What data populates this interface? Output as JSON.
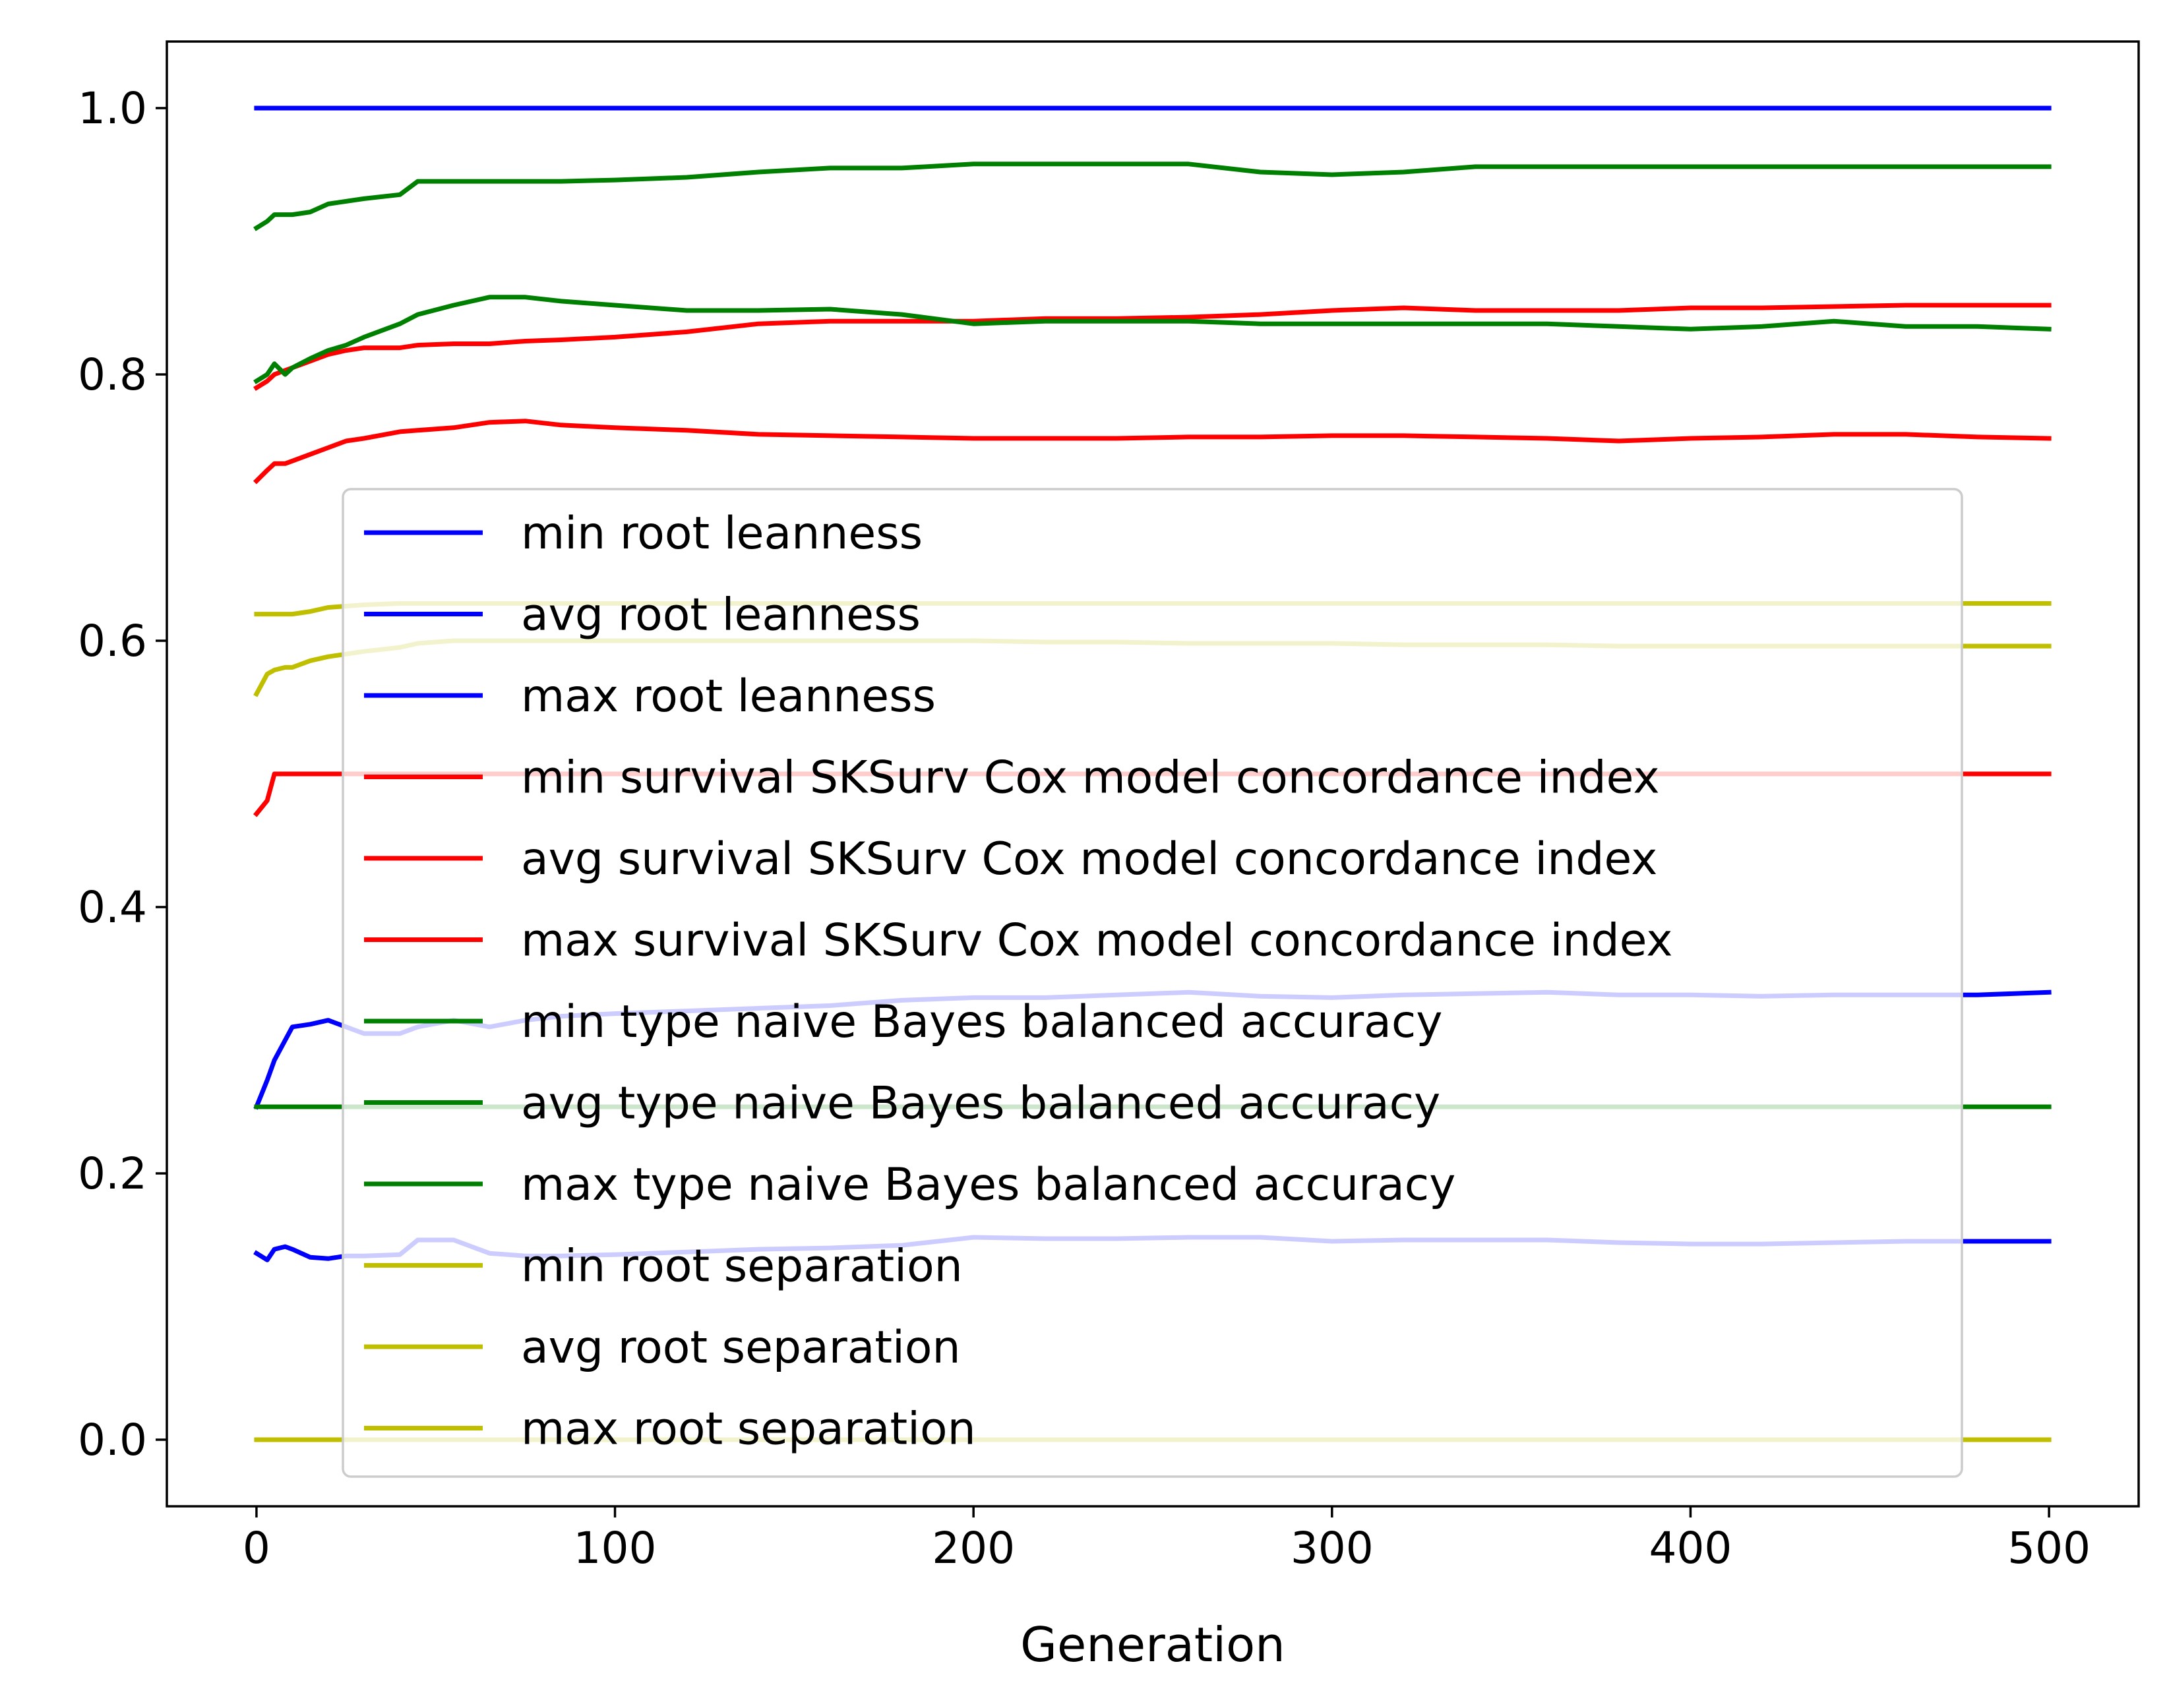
{
  "chart_data": {
    "type": "line",
    "title": "",
    "xlabel": "Generation",
    "ylabel": "",
    "xlim": [
      -25,
      525
    ],
    "ylim": [
      -0.05,
      1.05
    ],
    "grid": false,
    "legend_position": "center",
    "x_ticks": [
      0,
      100,
      200,
      300,
      400,
      500
    ],
    "y_ticks": [
      0.0,
      0.2,
      0.4,
      0.6,
      0.8,
      1.0
    ],
    "x_tick_labels": [
      "0",
      "100",
      "200",
      "300",
      "400",
      "500"
    ],
    "y_tick_labels": [
      "0.0",
      "0.2",
      "0.4",
      "0.6",
      "0.8",
      "1.0"
    ],
    "x": [
      0,
      3,
      5,
      8,
      10,
      15,
      20,
      25,
      30,
      40,
      45,
      55,
      65,
      75,
      85,
      100,
      120,
      140,
      160,
      180,
      200,
      220,
      240,
      260,
      280,
      300,
      320,
      340,
      360,
      380,
      400,
      420,
      440,
      460,
      480,
      500
    ],
    "series": [
      {
        "name": "min root leanness",
        "color": "#0000ff",
        "values": [
          0.14,
          0.135,
          0.143,
          0.145,
          0.143,
          0.137,
          0.136,
          0.138,
          0.138,
          0.139,
          0.15,
          0.15,
          0.14,
          0.138,
          0.138,
          0.139,
          0.141,
          0.143,
          0.144,
          0.146,
          0.152,
          0.151,
          0.151,
          0.152,
          0.152,
          0.149,
          0.15,
          0.15,
          0.15,
          0.148,
          0.147,
          0.147,
          0.148,
          0.149,
          0.149,
          0.149
        ]
      },
      {
        "name": "avg root leanness",
        "color": "#0000ff",
        "values": [
          0.25,
          0.27,
          0.285,
          0.3,
          0.31,
          0.312,
          0.315,
          0.31,
          0.305,
          0.305,
          0.31,
          0.315,
          0.31,
          0.315,
          0.318,
          0.32,
          0.322,
          0.324,
          0.326,
          0.33,
          0.332,
          0.332,
          0.334,
          0.336,
          0.333,
          0.332,
          0.334,
          0.335,
          0.336,
          0.334,
          0.334,
          0.333,
          0.334,
          0.334,
          0.334,
          0.336
        ]
      },
      {
        "name": "max root leanness",
        "color": "#0000ff",
        "values": [
          1.0,
          1.0,
          1.0,
          1.0,
          1.0,
          1.0,
          1.0,
          1.0,
          1.0,
          1.0,
          1.0,
          1.0,
          1.0,
          1.0,
          1.0,
          1.0,
          1.0,
          1.0,
          1.0,
          1.0,
          1.0,
          1.0,
          1.0,
          1.0,
          1.0,
          1.0,
          1.0,
          1.0,
          1.0,
          1.0,
          1.0,
          1.0,
          1.0,
          1.0,
          1.0,
          1.0
        ]
      },
      {
        "name": "min survival SKSurv Cox model concordance index",
        "color": "#ff0000",
        "values": [
          0.47,
          0.48,
          0.5,
          0.5,
          0.5,
          0.5,
          0.5,
          0.5,
          0.5,
          0.5,
          0.5,
          0.5,
          0.5,
          0.5,
          0.5,
          0.5,
          0.5,
          0.5,
          0.5,
          0.5,
          0.5,
          0.5,
          0.5,
          0.5,
          0.5,
          0.5,
          0.5,
          0.5,
          0.5,
          0.5,
          0.5,
          0.5,
          0.5,
          0.5,
          0.5,
          0.5
        ]
      },
      {
        "name": "avg survival SKSurv Cox model concordance index",
        "color": "#ff0000",
        "values": [
          0.72,
          0.728,
          0.733,
          0.733,
          0.735,
          0.74,
          0.745,
          0.75,
          0.752,
          0.757,
          0.758,
          0.76,
          0.764,
          0.765,
          0.762,
          0.76,
          0.758,
          0.755,
          0.754,
          0.753,
          0.752,
          0.752,
          0.752,
          0.753,
          0.753,
          0.754,
          0.754,
          0.753,
          0.752,
          0.75,
          0.752,
          0.753,
          0.755,
          0.755,
          0.753,
          0.752
        ]
      },
      {
        "name": "max survival SKSurv Cox model concordance index",
        "color": "#ff0000",
        "values": [
          0.79,
          0.795,
          0.8,
          0.803,
          0.805,
          0.81,
          0.815,
          0.818,
          0.82,
          0.82,
          0.822,
          0.823,
          0.823,
          0.825,
          0.826,
          0.828,
          0.832,
          0.838,
          0.84,
          0.84,
          0.84,
          0.842,
          0.842,
          0.843,
          0.845,
          0.848,
          0.85,
          0.848,
          0.848,
          0.848,
          0.85,
          0.85,
          0.851,
          0.852,
          0.852,
          0.852
        ]
      },
      {
        "name": "min type naive Bayes balanced accuracy",
        "color": "#008000",
        "values": [
          0.25,
          0.25,
          0.25,
          0.25,
          0.25,
          0.25,
          0.25,
          0.25,
          0.25,
          0.25,
          0.25,
          0.25,
          0.25,
          0.25,
          0.25,
          0.25,
          0.25,
          0.25,
          0.25,
          0.25,
          0.25,
          0.25,
          0.25,
          0.25,
          0.25,
          0.25,
          0.25,
          0.25,
          0.25,
          0.25,
          0.25,
          0.25,
          0.25,
          0.25,
          0.25,
          0.25
        ]
      },
      {
        "name": "avg type naive Bayes balanced accuracy",
        "color": "#008000",
        "values": [
          0.795,
          0.8,
          0.808,
          0.8,
          0.805,
          0.812,
          0.818,
          0.822,
          0.828,
          0.838,
          0.845,
          0.852,
          0.858,
          0.858,
          0.855,
          0.852,
          0.848,
          0.848,
          0.849,
          0.845,
          0.838,
          0.84,
          0.84,
          0.84,
          0.838,
          0.838,
          0.838,
          0.838,
          0.838,
          0.836,
          0.834,
          0.836,
          0.84,
          0.836,
          0.836,
          0.834
        ]
      },
      {
        "name": "max type naive Bayes balanced accuracy",
        "color": "#008000",
        "values": [
          0.91,
          0.915,
          0.92,
          0.92,
          0.92,
          0.922,
          0.928,
          0.93,
          0.932,
          0.935,
          0.945,
          0.945,
          0.945,
          0.945,
          0.945,
          0.946,
          0.948,
          0.952,
          0.955,
          0.955,
          0.958,
          0.958,
          0.958,
          0.958,
          0.952,
          0.95,
          0.952,
          0.956,
          0.956,
          0.956,
          0.956,
          0.956,
          0.956,
          0.956,
          0.956,
          0.956
        ]
      },
      {
        "name": "min root separation",
        "color": "#bfbf00",
        "values": [
          0.0,
          0.0,
          0.0,
          0.0,
          0.0,
          0.0,
          0.0,
          0.0,
          0.0,
          0.0,
          0.0,
          0.0,
          0.0,
          0.0,
          0.0,
          0.0,
          0.0,
          0.0,
          0.0,
          0.0,
          0.0,
          0.0,
          0.0,
          0.0,
          0.0,
          0.0,
          0.0,
          0.0,
          0.0,
          0.0,
          0.0,
          0.0,
          0.0,
          0.0,
          0.0,
          0.0
        ]
      },
      {
        "name": "avg root separation",
        "color": "#bfbf00",
        "values": [
          0.56,
          0.575,
          0.578,
          0.58,
          0.58,
          0.585,
          0.588,
          0.59,
          0.592,
          0.595,
          0.598,
          0.6,
          0.6,
          0.6,
          0.6,
          0.6,
          0.6,
          0.6,
          0.6,
          0.6,
          0.6,
          0.599,
          0.599,
          0.598,
          0.598,
          0.598,
          0.597,
          0.597,
          0.597,
          0.596,
          0.596,
          0.596,
          0.596,
          0.596,
          0.596,
          0.596
        ]
      },
      {
        "name": "max root separation",
        "color": "#bfbf00",
        "values": [
          0.62,
          0.62,
          0.62,
          0.62,
          0.62,
          0.622,
          0.625,
          0.626,
          0.627,
          0.628,
          0.628,
          0.628,
          0.628,
          0.628,
          0.628,
          0.628,
          0.628,
          0.628,
          0.628,
          0.628,
          0.628,
          0.628,
          0.628,
          0.628,
          0.628,
          0.628,
          0.628,
          0.628,
          0.628,
          0.628,
          0.628,
          0.628,
          0.628,
          0.628,
          0.628,
          0.628
        ]
      }
    ]
  }
}
